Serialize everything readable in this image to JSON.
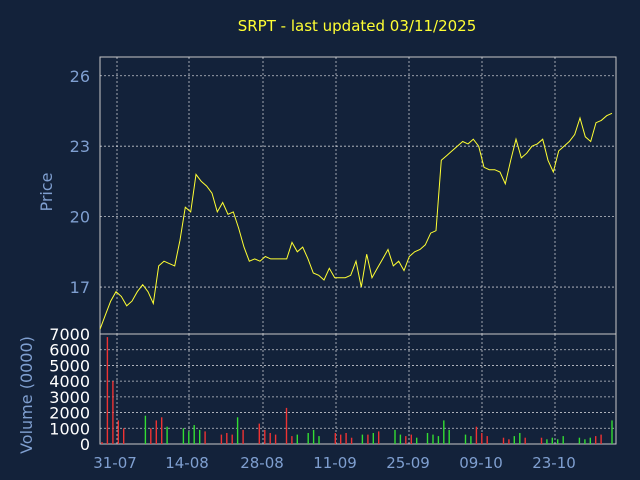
{
  "chart_data": [
    {
      "type": "line",
      "title": "SRPT - last updated 03/11/2025",
      "ylabel": "Price",
      "ylim": [
        15.0,
        26.8
      ],
      "yticks": [
        17,
        20,
        23,
        26
      ],
      "grid": true,
      "line_color": "#ffff33",
      "series": [
        {
          "values": [
            15.2,
            15.8,
            16.4,
            16.8,
            16.6,
            16.2,
            16.4,
            16.8,
            17.1,
            16.8,
            16.3,
            17.9,
            18.1,
            18.0,
            17.9,
            19.0,
            20.4,
            20.2,
            21.8,
            21.5,
            21.3,
            21.0,
            20.2,
            20.6,
            20.1,
            20.2,
            19.5,
            18.7,
            18.1,
            18.2,
            18.1,
            18.3,
            18.2,
            18.2,
            18.2,
            18.2,
            18.9,
            18.5,
            18.7,
            18.2,
            17.6,
            17.5,
            17.3,
            17.8,
            17.4,
            17.4,
            17.4,
            17.5,
            18.1,
            17.0,
            18.4,
            17.4,
            17.8,
            18.2,
            18.6,
            17.9,
            18.1,
            17.7,
            18.3,
            18.5,
            18.6,
            18.8,
            19.3,
            19.4,
            22.4,
            22.6,
            22.8,
            23.0,
            23.2,
            23.1,
            23.3,
            23.0,
            22.1,
            22.0,
            22.0,
            21.9,
            21.4,
            22.4,
            23.3,
            22.5,
            22.7,
            23.0,
            23.1,
            23.3,
            22.4,
            21.9,
            22.8,
            23.0,
            23.2,
            23.5,
            24.2,
            23.4,
            23.2,
            24.0,
            24.1,
            24.3,
            24.4
          ]
        }
      ]
    },
    {
      "type": "bar",
      "ylabel": "Volume (0000)",
      "ylim": [
        0,
        7000
      ],
      "yticks": [
        0,
        1000,
        2000,
        3000,
        4000,
        5000,
        6000,
        7000
      ],
      "grid": true,
      "up_color": "#33dd33",
      "down_color": "#ee3333",
      "x_tick_labels": [
        "31-07",
        "14-08",
        "28-08",
        "11-09",
        "25-09",
        "09-10",
        "23-10"
      ],
      "values": [
        120,
        6800,
        4000,
        1500,
        1000,
        0,
        0,
        0,
        1800,
        1000,
        1500,
        1700,
        1100,
        0,
        0,
        1000,
        800,
        1200,
        900,
        800,
        0,
        0,
        600,
        700,
        600,
        1700,
        900,
        0,
        0,
        1300,
        900,
        700,
        600,
        0,
        2300,
        500,
        600,
        0,
        700,
        900,
        500,
        0,
        0,
        700,
        600,
        700,
        400,
        0,
        600,
        600,
        700,
        800,
        0,
        0,
        900,
        600,
        500,
        600,
        400,
        0,
        700,
        600,
        500,
        1500,
        900,
        0,
        0,
        600,
        500,
        1100,
        700,
        500,
        0,
        0,
        400,
        300,
        500,
        700,
        400,
        0,
        0,
        400,
        300,
        400,
        300,
        500,
        0,
        0,
        400,
        300,
        400,
        500,
        600,
        0,
        1500
      ],
      "direction": [
        "d",
        "d",
        "d",
        "d",
        "d",
        "u",
        "u",
        "u",
        "u",
        "d",
        "d",
        "d",
        "u",
        "u",
        "u",
        "u",
        "u",
        "u",
        "u",
        "d",
        "d",
        "d",
        "d",
        "d",
        "d",
        "u",
        "d",
        "d",
        "d",
        "d",
        "d",
        "d",
        "d",
        "d",
        "d",
        "d",
        "u",
        "d",
        "u",
        "u",
        "u",
        "u",
        "u",
        "d",
        "d",
        "d",
        "d",
        "d",
        "u",
        "d",
        "u",
        "d",
        "u",
        "u",
        "u",
        "u",
        "d",
        "d",
        "u",
        "u",
        "u",
        "u",
        "u",
        "u",
        "u",
        "u",
        "u",
        "u",
        "u",
        "d",
        "d",
        "d",
        "d",
        "d",
        "d",
        "d",
        "u",
        "u",
        "d",
        "d",
        "d",
        "d",
        "u",
        "u",
        "u",
        "u",
        "u",
        "u",
        "u",
        "u",
        "u",
        "d",
        "d",
        "u",
        "u",
        "u",
        "u"
      ]
    }
  ]
}
